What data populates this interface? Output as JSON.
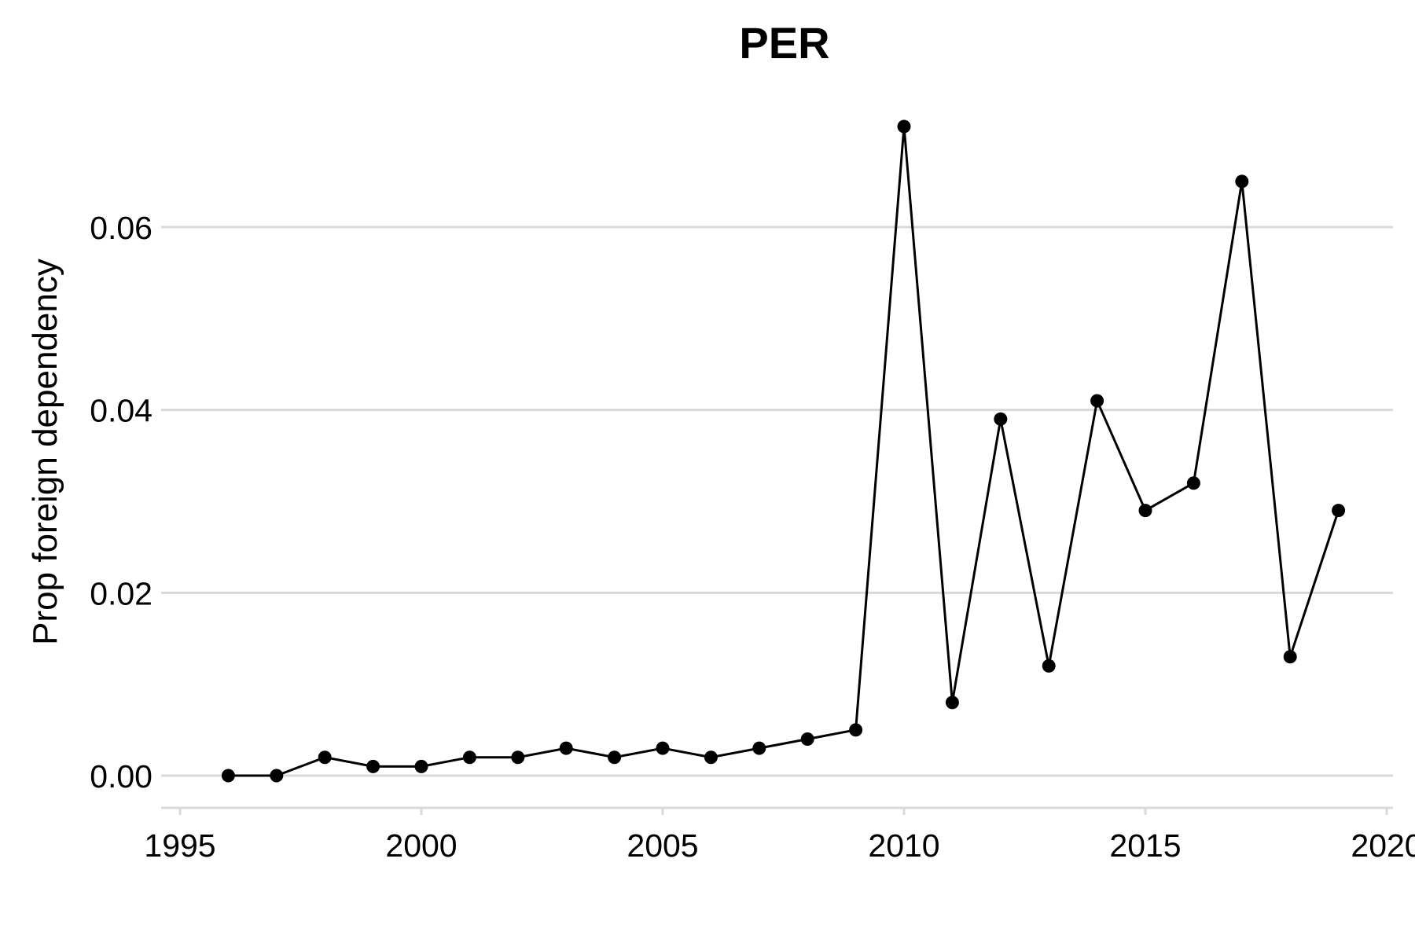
{
  "chart_data": {
    "type": "line",
    "title": "PER",
    "xlabel": "",
    "ylabel": "Prop foreign dependency",
    "xlim": [
      1995,
      2020
    ],
    "ylim": [
      0,
      0.072
    ],
    "xticks": [
      1995,
      2000,
      2005,
      2010,
      2015,
      2020
    ],
    "xtick_labels": [
      "1995",
      "2000",
      "2005",
      "2010",
      "2015",
      "2020"
    ],
    "yticks": [
      0,
      0.02,
      0.04,
      0.06
    ],
    "ytick_labels": [
      "0.00",
      "0.02",
      "0.04",
      "0.06"
    ],
    "grid": "horizontal",
    "series": [
      {
        "x": [
          1996,
          1997,
          1998,
          1999,
          2000,
          2001,
          2002,
          2003,
          2004,
          2005,
          2006,
          2007,
          2008,
          2009,
          2010,
          2011,
          2012,
          2013,
          2014,
          2015,
          2016,
          2017,
          2018,
          2019
        ],
        "values": [
          0.0,
          0.0,
          0.002,
          0.001,
          0.001,
          0.002,
          0.002,
          0.003,
          0.002,
          0.003,
          0.002,
          0.003,
          0.004,
          0.005,
          0.071,
          0.008,
          0.039,
          0.012,
          0.041,
          0.029,
          0.032,
          0.065,
          0.013,
          0.029
        ]
      }
    ]
  }
}
